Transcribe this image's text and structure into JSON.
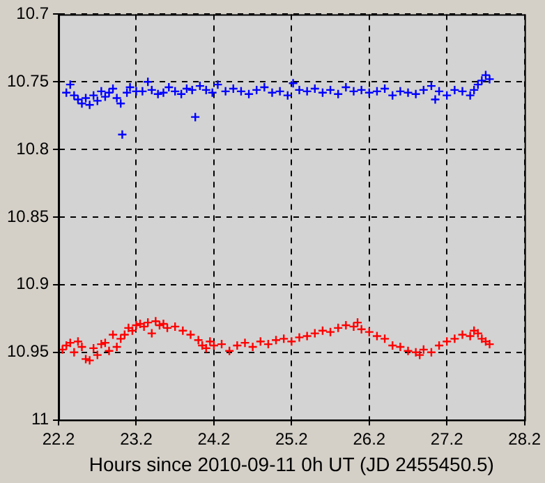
{
  "chart_data": {
    "type": "scatter",
    "xlabel": "Hours since 2010-09-11 0h UT (JD 2455450.5)",
    "xlim": [
      22.2,
      28.2
    ],
    "xticks": [
      22.2,
      23.2,
      24.2,
      25.2,
      26.2,
      27.2,
      28.2
    ],
    "ylim": [
      11,
      10.7
    ],
    "yticks": [
      10.7,
      10.75,
      10.8,
      10.85,
      10.9,
      10.95,
      11
    ],
    "grid": true,
    "marker": "cross",
    "legend": false,
    "series": [
      {
        "color": "#0000ff",
        "x": [
          22.3,
          22.35,
          22.4,
          22.45,
          22.5,
          22.55,
          22.6,
          22.65,
          22.7,
          22.75,
          22.8,
          22.85,
          22.9,
          22.95,
          23.0,
          23.02,
          23.08,
          23.12,
          23.2,
          23.28,
          23.35,
          23.4,
          23.48,
          23.55,
          23.62,
          23.7,
          23.78,
          23.85,
          23.92,
          23.96,
          24.02,
          24.1,
          24.18,
          24.25,
          24.35,
          24.45,
          24.55,
          24.65,
          24.75,
          24.85,
          24.95,
          25.05,
          25.15,
          25.22,
          25.3,
          25.4,
          25.5,
          25.6,
          25.7,
          25.8,
          25.9,
          26.0,
          26.1,
          26.2,
          26.3,
          26.4,
          26.5,
          26.6,
          26.7,
          26.8,
          26.9,
          27.0,
          27.05,
          27.1,
          27.2,
          27.3,
          27.4,
          27.5,
          27.55,
          27.6,
          27.65,
          27.7,
          27.75
        ],
        "values": [
          10.758,
          10.752,
          10.76,
          10.763,
          10.766,
          10.762,
          10.767,
          10.76,
          10.764,
          10.757,
          10.761,
          10.758,
          10.755,
          10.762,
          10.766,
          10.789,
          10.758,
          10.754,
          10.757,
          10.757,
          10.75,
          10.756,
          10.759,
          10.758,
          10.754,
          10.757,
          10.759,
          10.755,
          10.756,
          10.776,
          10.753,
          10.756,
          10.758,
          10.752,
          10.757,
          10.755,
          10.757,
          10.759,
          10.756,
          10.754,
          10.758,
          10.757,
          10.76,
          10.751,
          10.756,
          10.757,
          10.755,
          10.758,
          10.756,
          10.759,
          10.754,
          10.757,
          10.756,
          10.758,
          10.757,
          10.755,
          10.76,
          10.757,
          10.758,
          10.759,
          10.756,
          10.753,
          10.763,
          10.757,
          10.76,
          10.756,
          10.757,
          10.76,
          10.756,
          10.752,
          10.749,
          10.745,
          10.748
        ]
      },
      {
        "color": "#ff0000",
        "x": [
          22.25,
          22.3,
          22.35,
          22.4,
          22.45,
          22.5,
          22.55,
          22.6,
          22.65,
          22.7,
          22.75,
          22.8,
          22.85,
          22.9,
          22.95,
          23.0,
          23.05,
          23.1,
          23.15,
          23.2,
          23.25,
          23.3,
          23.35,
          23.4,
          23.45,
          23.5,
          23.55,
          23.6,
          23.7,
          23.8,
          23.9,
          24.0,
          24.05,
          24.1,
          24.15,
          24.2,
          24.3,
          24.4,
          24.5,
          24.6,
          24.7,
          24.8,
          24.9,
          25.0,
          25.1,
          25.2,
          25.3,
          25.4,
          25.5,
          25.6,
          25.7,
          25.8,
          25.9,
          26.0,
          26.05,
          26.1,
          26.2,
          26.3,
          26.4,
          26.5,
          26.6,
          26.7,
          26.8,
          26.85,
          26.9,
          27.0,
          27.1,
          27.2,
          27.3,
          27.4,
          27.5,
          27.55,
          27.6,
          27.65,
          27.7,
          27.75
        ],
        "values": [
          10.948,
          10.945,
          10.943,
          10.95,
          10.942,
          10.946,
          10.955,
          10.956,
          10.947,
          10.952,
          10.944,
          10.943,
          10.949,
          10.937,
          10.946,
          10.94,
          10.937,
          10.932,
          10.934,
          10.93,
          10.929,
          10.931,
          10.928,
          10.936,
          10.927,
          10.93,
          10.929,
          10.932,
          10.931,
          10.934,
          10.937,
          10.941,
          10.945,
          10.947,
          10.942,
          10.945,
          10.944,
          10.949,
          10.945,
          10.943,
          10.946,
          10.942,
          10.944,
          10.941,
          10.94,
          10.942,
          10.939,
          10.938,
          10.936,
          10.934,
          10.935,
          10.932,
          10.93,
          10.931,
          10.928,
          10.933,
          10.935,
          10.938,
          10.94,
          10.945,
          10.946,
          10.949,
          10.95,
          10.952,
          10.948,
          10.95,
          10.945,
          10.942,
          10.94,
          10.937,
          10.938,
          10.934,
          10.936,
          10.94,
          10.942,
          10.944
        ]
      }
    ]
  }
}
